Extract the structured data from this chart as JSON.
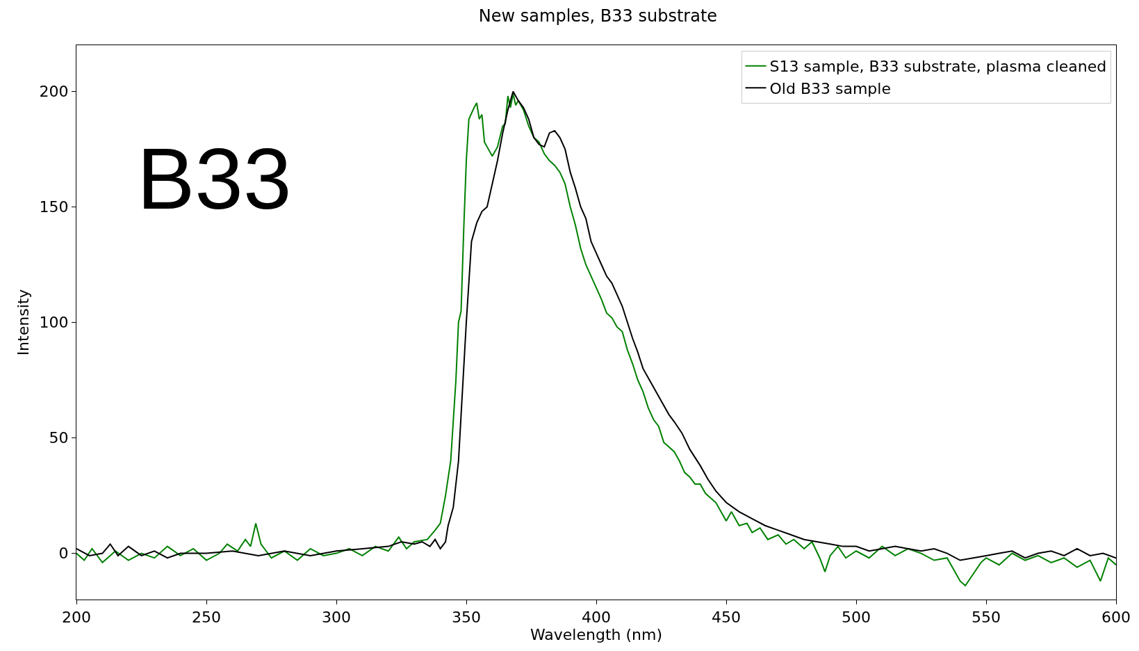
{
  "chart_data": {
    "type": "line",
    "title": "New samples, B33 substrate",
    "xlabel": "Wavelength (nm)",
    "ylabel": "Intensity",
    "xlim": [
      200,
      600
    ],
    "xticks": [
      200,
      250,
      300,
      350,
      400,
      450,
      500,
      550,
      600
    ],
    "ylim": [
      -20,
      220
    ],
    "yticks": [
      0,
      50,
      100,
      150,
      200
    ],
    "legend": "top right",
    "marker": "none",
    "line_style": "solid",
    "annotations": [
      "B33"
    ],
    "series": [
      {
        "name": "S13 sample, B33 substrate, plasma cleaned",
        "color": "#008000",
        "x": [
          200,
          203,
          206,
          210,
          215,
          220,
          225,
          230,
          235,
          240,
          245,
          250,
          255,
          258,
          262,
          265,
          267,
          269,
          271,
          275,
          280,
          285,
          290,
          295,
          300,
          305,
          310,
          315,
          320,
          324,
          327,
          330,
          335,
          338,
          340,
          342,
          344,
          346,
          347,
          348,
          349,
          350,
          351,
          353,
          354,
          355,
          356,
          357,
          358,
          360,
          362,
          364,
          365,
          366,
          367,
          368,
          369,
          370,
          372,
          374,
          376,
          378,
          380,
          382,
          384,
          386,
          388,
          390,
          392,
          394,
          396,
          398,
          400,
          402,
          404,
          406,
          408,
          410,
          412,
          414,
          416,
          418,
          420,
          422,
          424,
          426,
          428,
          430,
          432,
          434,
          436,
          438,
          440,
          442,
          444,
          446,
          448,
          450,
          452,
          455,
          458,
          460,
          463,
          466,
          470,
          473,
          476,
          480,
          483,
          486,
          488,
          490,
          493,
          496,
          500,
          505,
          510,
          515,
          520,
          525,
          530,
          535,
          540,
          542,
          545,
          548,
          550,
          555,
          560,
          565,
          570,
          575,
          580,
          585,
          590,
          594,
          597,
          600
        ],
        "values": [
          0,
          -3,
          2,
          -4,
          1,
          -3,
          0,
          -2,
          3,
          -1,
          2,
          -3,
          0,
          4,
          1,
          6,
          3,
          13,
          4,
          -2,
          1,
          -3,
          2,
          -1,
          0,
          2,
          -1,
          3,
          1,
          7,
          2,
          5,
          6,
          10,
          13,
          25,
          40,
          75,
          100,
          105,
          140,
          170,
          188,
          193,
          195,
          188,
          190,
          178,
          176,
          172,
          176,
          185,
          186,
          198,
          193,
          199,
          194,
          196,
          192,
          185,
          180,
          178,
          173,
          170,
          168,
          165,
          160,
          150,
          142,
          132,
          125,
          120,
          115,
          110,
          104,
          102,
          98,
          96,
          88,
          82,
          75,
          70,
          63,
          58,
          55,
          48,
          46,
          44,
          40,
          35,
          33,
          30,
          30,
          26,
          24,
          22,
          18,
          14,
          18,
          12,
          13,
          9,
          11,
          6,
          8,
          4,
          6,
          2,
          5,
          -2,
          -8,
          -1,
          3,
          -2,
          1,
          -2,
          3,
          -1,
          2,
          0,
          -3,
          -2,
          -12,
          -14,
          -9,
          -4,
          -2,
          -5,
          0,
          -3,
          -1,
          -4,
          -2,
          -6,
          -3,
          -12,
          -2,
          -5
        ]
      },
      {
        "name": "Old B33 sample",
        "color": "#000000",
        "x": [
          200,
          205,
          210,
          213,
          216,
          220,
          225,
          230,
          235,
          240,
          250,
          260,
          270,
          280,
          290,
          300,
          310,
          320,
          325,
          330,
          333,
          336,
          338,
          340,
          342,
          343,
          345,
          347,
          349,
          350,
          352,
          354,
          356,
          358,
          360,
          362,
          364,
          366,
          368,
          370,
          372,
          374,
          376,
          378,
          380,
          382,
          384,
          386,
          388,
          390,
          392,
          394,
          396,
          398,
          400,
          402,
          404,
          406,
          408,
          410,
          412,
          414,
          416,
          418,
          420,
          422,
          425,
          428,
          430,
          433,
          436,
          440,
          443,
          446,
          450,
          455,
          460,
          465,
          470,
          475,
          480,
          485,
          490,
          495,
          500,
          505,
          510,
          515,
          520,
          525,
          530,
          535,
          540,
          545,
          550,
          555,
          560,
          565,
          570,
          575,
          580,
          585,
          590,
          595,
          600
        ],
        "values": [
          2,
          -1,
          0,
          4,
          -1,
          3,
          -1,
          1,
          -2,
          0,
          0,
          1,
          -1,
          1,
          -1,
          1,
          2,
          3,
          5,
          4,
          5,
          3,
          6,
          2,
          5,
          12,
          20,
          40,
          80,
          100,
          135,
          143,
          148,
          150,
          160,
          170,
          182,
          192,
          200,
          196,
          193,
          188,
          180,
          177,
          176,
          182,
          183,
          180,
          175,
          165,
          158,
          150,
          145,
          135,
          130,
          125,
          120,
          117,
          112,
          107,
          100,
          93,
          87,
          80,
          76,
          72,
          66,
          60,
          57,
          52,
          45,
          38,
          32,
          27,
          22,
          18,
          15,
          12,
          10,
          8,
          6,
          5,
          4,
          3,
          3,
          1,
          2,
          3,
          2,
          1,
          2,
          0,
          -3,
          -2,
          -1,
          0,
          1,
          -2,
          0,
          1,
          -1,
          2,
          -1,
          0,
          -2
        ]
      }
    ]
  }
}
